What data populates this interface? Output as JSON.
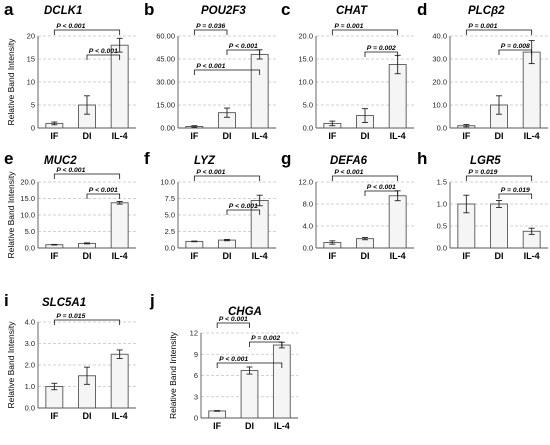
{
  "figure": {
    "panels": [
      {
        "letter": "a",
        "gene": "DCLK1",
        "ylabel": "Relative Band Intensity"
      },
      {
        "letter": "b",
        "gene": "POU2F3",
        "ylabel": ""
      },
      {
        "letter": "c",
        "gene": "CHAT",
        "ylabel": ""
      },
      {
        "letter": "d",
        "gene": "PLCβ2",
        "ylabel": ""
      },
      {
        "letter": "e",
        "gene": "MUC2",
        "ylabel": "Relative Band Intensity"
      },
      {
        "letter": "f",
        "gene": "LYZ",
        "ylabel": ""
      },
      {
        "letter": "g",
        "gene": "DEFA6",
        "ylabel": ""
      },
      {
        "letter": "h",
        "gene": "LGR5",
        "ylabel": ""
      },
      {
        "letter": "i",
        "gene": "SLC5A1",
        "ylabel": "Relative Band Intensity"
      },
      {
        "letter": "j",
        "gene": "CHGA",
        "ylabel": "Relative Band Intensity"
      }
    ]
  },
  "chart_data": [
    {
      "type": "bar",
      "title": "DCLK1",
      "ylabel": "Relative Band Intensity",
      "categories": [
        "IF",
        "DI",
        "IL-4"
      ],
      "values": [
        1.0,
        5.0,
        18.0
      ],
      "errors": [
        0.3,
        2.0,
        1.5
      ],
      "ylim": [
        0,
        20
      ],
      "yticks": [
        "0",
        "5",
        "10",
        "15",
        "20"
      ],
      "ytick_values": [
        0,
        5,
        10,
        15,
        20
      ],
      "comparisons": [
        {
          "from": "IF",
          "to": "IL-4",
          "label": "P < 0.001"
        },
        {
          "from": "DI",
          "to": "IL-4",
          "label": "P < 0.001"
        }
      ]
    },
    {
      "type": "bar",
      "title": "POU2F3",
      "categories": [
        "IF",
        "DI",
        "IL-4"
      ],
      "values": [
        1.0,
        10.0,
        48.0
      ],
      "errors": [
        0.5,
        3.0,
        3.0
      ],
      "ylim": [
        0,
        60
      ],
      "yticks": [
        "0.00",
        "15.00",
        "30.00",
        "45.00",
        "60.00"
      ],
      "ytick_values": [
        0,
        15,
        30,
        45,
        60
      ],
      "comparisons": [
        {
          "from": "IF",
          "to": "DI",
          "label": "P = 0.036"
        },
        {
          "from": "DI",
          "to": "IL-4",
          "label": "P < 0.001"
        },
        {
          "from": "IF",
          "to": "IL-4",
          "label": "P < 0.001"
        }
      ]
    },
    {
      "type": "bar",
      "title": "CHAT",
      "categories": [
        "IF",
        "DI",
        "IL-4"
      ],
      "values": [
        1.0,
        2.7,
        13.8
      ],
      "errors": [
        0.5,
        1.5,
        2.0
      ],
      "ylim": [
        0,
        20
      ],
      "yticks": [
        "0.0",
        "5.0",
        "10.0",
        "15.0",
        "20.0"
      ],
      "ytick_values": [
        0,
        5,
        10,
        15,
        20
      ],
      "comparisons": [
        {
          "from": "IF",
          "to": "IL-4",
          "label": "P = 0.001"
        },
        {
          "from": "DI",
          "to": "IL-4",
          "label": "P = 0.002"
        }
      ]
    },
    {
      "type": "bar",
      "title": "PLCβ2",
      "categories": [
        "IF",
        "DI",
        "IL-4"
      ],
      "values": [
        1.0,
        10.0,
        33.0
      ],
      "errors": [
        0.5,
        4.0,
        5.0
      ],
      "ylim": [
        0,
        40
      ],
      "yticks": [
        "0.0",
        "10.0",
        "20.0",
        "30.0",
        "40.0"
      ],
      "ytick_values": [
        0,
        10,
        20,
        30,
        40
      ],
      "comparisons": [
        {
          "from": "IF",
          "to": "IL-4",
          "label": "P = 0.001"
        },
        {
          "from": "DI",
          "to": "IL-4",
          "label": "P = 0.008"
        }
      ]
    },
    {
      "type": "bar",
      "title": "MUC2",
      "ylabel": "Relative Band Intensity",
      "categories": [
        "IF",
        "DI",
        "IL-4"
      ],
      "values": [
        1.0,
        1.4,
        13.7
      ],
      "errors": [
        0.1,
        0.15,
        0.4
      ],
      "ylim": [
        0,
        20
      ],
      "yticks": [
        "0.0",
        "5.0",
        "10.0",
        "15.0",
        "20.0"
      ],
      "ytick_values": [
        0,
        5,
        10,
        15,
        20
      ],
      "comparisons": [
        {
          "from": "IF",
          "to": "IL-4",
          "label": "P < 0.001"
        },
        {
          "from": "DI",
          "to": "IL-4",
          "label": "P < 0.001"
        }
      ]
    },
    {
      "type": "bar",
      "title": "LYZ",
      "categories": [
        "IF",
        "DI",
        "IL-4"
      ],
      "values": [
        1.0,
        1.2,
        7.2
      ],
      "errors": [
        0.05,
        0.1,
        0.8
      ],
      "ylim": [
        0,
        10
      ],
      "yticks": [
        "0.0",
        "2.5",
        "5.0",
        "7.5",
        "10.0"
      ],
      "ytick_values": [
        0,
        2.5,
        5,
        7.5,
        10
      ],
      "comparisons": [
        {
          "from": "IF",
          "to": "IL-4",
          "label": "P < 0.001"
        },
        {
          "from": "DI",
          "to": "IL-4",
          "label": "P < 0.001"
        }
      ]
    },
    {
      "type": "bar",
      "title": "DEFA6",
      "categories": [
        "IF",
        "DI",
        "IL-4"
      ],
      "values": [
        1.0,
        1.7,
        9.5
      ],
      "errors": [
        0.3,
        0.2,
        0.9
      ],
      "ylim": [
        0,
        12
      ],
      "yticks": [
        "0.0",
        "4.0",
        "8.0",
        "12.0"
      ],
      "ytick_values": [
        0,
        4,
        8,
        12
      ],
      "comparisons": [
        {
          "from": "IF",
          "to": "IL-4",
          "label": "P < 0.001"
        },
        {
          "from": "DI",
          "to": "IL-4",
          "label": "P < 0.001"
        }
      ]
    },
    {
      "type": "bar",
      "title": "LGR5",
      "categories": [
        "IF",
        "DI",
        "IL-4"
      ],
      "values": [
        1.0,
        1.0,
        0.38
      ],
      "errors": [
        0.2,
        0.08,
        0.07
      ],
      "ylim": [
        0,
        1.5
      ],
      "yticks": [
        "0.0",
        "0.5",
        "1.0",
        "1.5"
      ],
      "ytick_values": [
        0,
        0.5,
        1,
        1.5
      ],
      "comparisons": [
        {
          "from": "IF",
          "to": "IL-4",
          "label": "P = 0.019"
        },
        {
          "from": "DI",
          "to": "IL-4",
          "label": "P = 0.019"
        }
      ]
    },
    {
      "type": "bar",
      "title": "SLC5A1",
      "ylabel": "Relative Band Intensity",
      "categories": [
        "IF",
        "DI",
        "IL-4"
      ],
      "values": [
        1.0,
        1.5,
        2.5
      ],
      "errors": [
        0.15,
        0.4,
        0.2
      ],
      "ylim": [
        0,
        4
      ],
      "yticks": [
        "0.0",
        "1.0",
        "2.0",
        "3.0",
        "4.0"
      ],
      "ytick_values": [
        0,
        1,
        2,
        3,
        4
      ],
      "comparisons": [
        {
          "from": "IF",
          "to": "IL-4",
          "label": "P = 0.015"
        }
      ]
    },
    {
      "type": "bar",
      "title": "CHGA",
      "ylabel": "Relative Band Intensity",
      "categories": [
        "IF",
        "DI",
        "IL-4"
      ],
      "values": [
        1.0,
        6.7,
        10.3
      ],
      "errors": [
        0.05,
        0.5,
        0.4
      ],
      "ylim": [
        0,
        12
      ],
      "yticks": [
        "0",
        "3",
        "6",
        "9",
        "12"
      ],
      "ytick_values": [
        0,
        3,
        6,
        9,
        12
      ],
      "comparisons": [
        {
          "from": "IF",
          "to": "DI",
          "label": "P < 0.001"
        },
        {
          "from": "DI",
          "to": "IL-4",
          "label": "P = 0.002"
        },
        {
          "from": "IF",
          "to": "IL-4",
          "label": "P < 0.001"
        }
      ]
    }
  ]
}
